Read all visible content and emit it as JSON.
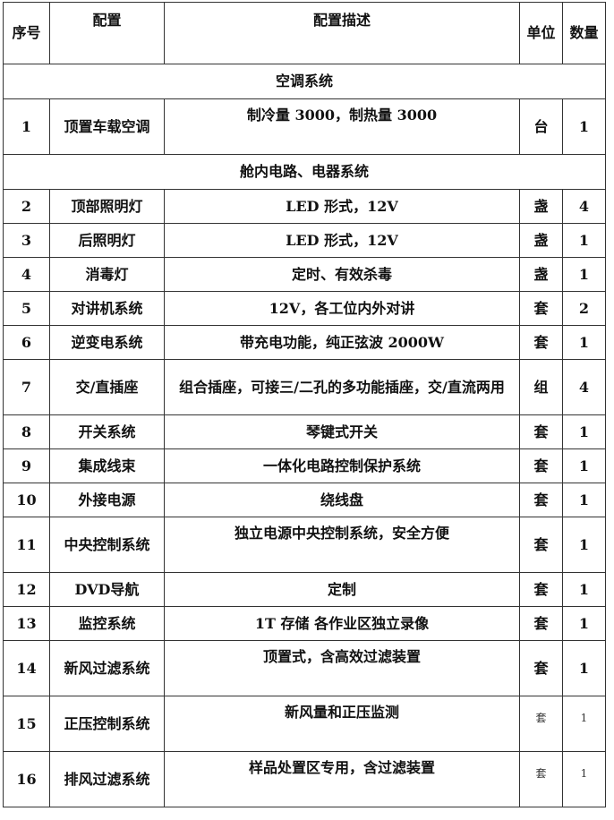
{
  "headers": {
    "no": "序号",
    "config": "配置",
    "desc": "配置描述",
    "unit": "单位",
    "qty": "数量"
  },
  "sections": [
    {
      "title": "空调系统",
      "rows": [
        {
          "no": "1",
          "config": "顶置车载空调",
          "desc": "制冷量 3000，制热量 3000",
          "unit": "台",
          "qty": "1"
        }
      ]
    },
    {
      "title": "舱内电路、电器系统",
      "rows": [
        {
          "no": "2",
          "config": "顶部照明灯",
          "desc": "LED 形式，12V",
          "unit": "盏",
          "qty": "4"
        },
        {
          "no": "3",
          "config": "后照明灯",
          "desc": "LED 形式，12V",
          "unit": "盏",
          "qty": "1"
        },
        {
          "no": "4",
          "config": "消毒灯",
          "desc": "定时、有效杀毒",
          "unit": "盏",
          "qty": "1"
        },
        {
          "no": "5",
          "config": "对讲机系统",
          "desc": "12V，各工位内外对讲",
          "unit": "套",
          "qty": "2"
        },
        {
          "no": "6",
          "config": "逆变电系统",
          "desc": "带充电功能，纯正弦波 2000W",
          "unit": "套",
          "qty": "1"
        },
        {
          "no": "7",
          "config": "交/直插座",
          "desc": "组合插座，可接三/二孔的多功能插座，交/直流两用",
          "unit": "组",
          "qty": "4"
        },
        {
          "no": "8",
          "config": "开关系统",
          "desc": "琴键式开关",
          "unit": "套",
          "qty": "1"
        },
        {
          "no": "9",
          "config": "集成线束",
          "desc": "一体化电路控制保护系统",
          "unit": "套",
          "qty": "1"
        },
        {
          "no": "10",
          "config": "外接电源",
          "desc": "绕线盘",
          "unit": "套",
          "qty": "1"
        },
        {
          "no": "11",
          "config": "中央控制系统",
          "desc": "独立电源中央控制系统，安全方便",
          "unit": "套",
          "qty": "1"
        },
        {
          "no": "12",
          "config": "DVD导航",
          "desc": "定制",
          "unit": "套",
          "qty": "1"
        },
        {
          "no": "13",
          "config": "监控系统",
          "desc": "1T 存储 各作业区独立录像",
          "unit": "套",
          "qty": "1"
        },
        {
          "no": "14",
          "config": "新风过滤系统",
          "desc": "顶置式，含高效过滤装置",
          "unit": "套",
          "qty": "1"
        },
        {
          "no": "15",
          "config": "正压控制系统",
          "desc": "新风量和正压监测",
          "unit": "套",
          "qty": "1"
        },
        {
          "no": "16",
          "config": "排风过滤系统",
          "desc": "样品处置区专用，含过滤装置",
          "unit": "套",
          "qty": "1"
        }
      ]
    }
  ]
}
